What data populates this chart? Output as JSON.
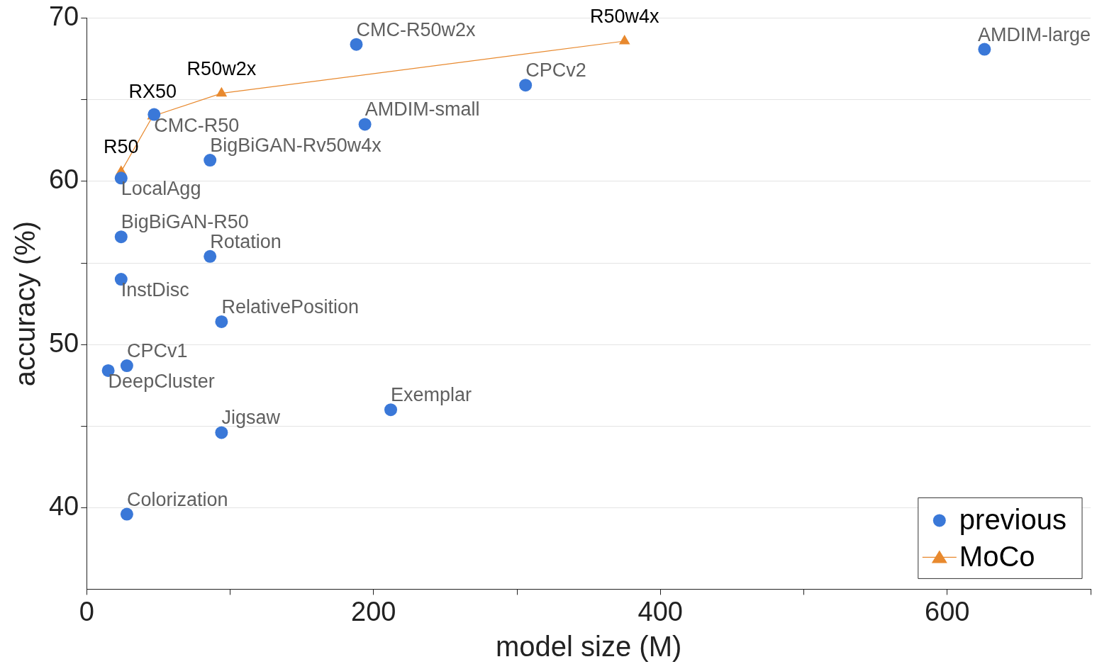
{
  "chart_data": {
    "type": "scatter",
    "xlabel": "model size (M)",
    "ylabel": "accuracy (%)",
    "xlim": [
      0,
      700
    ],
    "ylim": [
      35,
      70
    ],
    "xticks": [
      0,
      {
        "value": 100,
        "label": null
      },
      200,
      {
        "value": 300,
        "label": null
      },
      400,
      {
        "value": 500,
        "label": null
      },
      600,
      {
        "value": 700,
        "label": null
      }
    ],
    "yticks": [
      40,
      {
        "value": 45,
        "label": null
      },
      50,
      {
        "value": 55,
        "label": null
      },
      60,
      {
        "value": 65,
        "label": null
      },
      70
    ],
    "grid": "y",
    "legend": "bottom right",
    "series": [
      {
        "name": "previous",
        "type": "scatter",
        "marker": "circle",
        "color": "#3a78d8",
        "x": [
          188,
          626,
          306,
          194,
          47,
          86,
          24,
          24,
          86,
          24,
          94,
          28,
          15,
          212,
          94,
          28
        ],
        "values": [
          68.4,
          68.1,
          65.9,
          63.5,
          64.1,
          61.3,
          60.2,
          56.6,
          55.4,
          54.0,
          51.4,
          48.7,
          48.4,
          46.0,
          44.6,
          39.6
        ],
        "value_labels": [
          "CMC-R50w2x",
          "AMDIM-large",
          "CPCv2",
          "AMDIM-small",
          "CMC-R50",
          "BigBiGAN-Rv50w4x",
          "LocalAgg",
          "BigBiGAN-R50",
          "Rotation",
          "InstDisc",
          "RelativePosition",
          "CPCv1",
          "DeepCluster",
          "Exemplar",
          "Jigsaw",
          "Colorization"
        ]
      },
      {
        "name": "MoCo",
        "type": "line",
        "marker": "triangle",
        "line_style": "solid",
        "color": "#e8892e",
        "x": [
          24,
          46,
          94,
          375
        ],
        "values": [
          60.6,
          64.0,
          65.4,
          68.6
        ],
        "value_labels": [
          "R50",
          "RX50",
          "R50w2x",
          "R50w4x"
        ]
      }
    ]
  }
}
